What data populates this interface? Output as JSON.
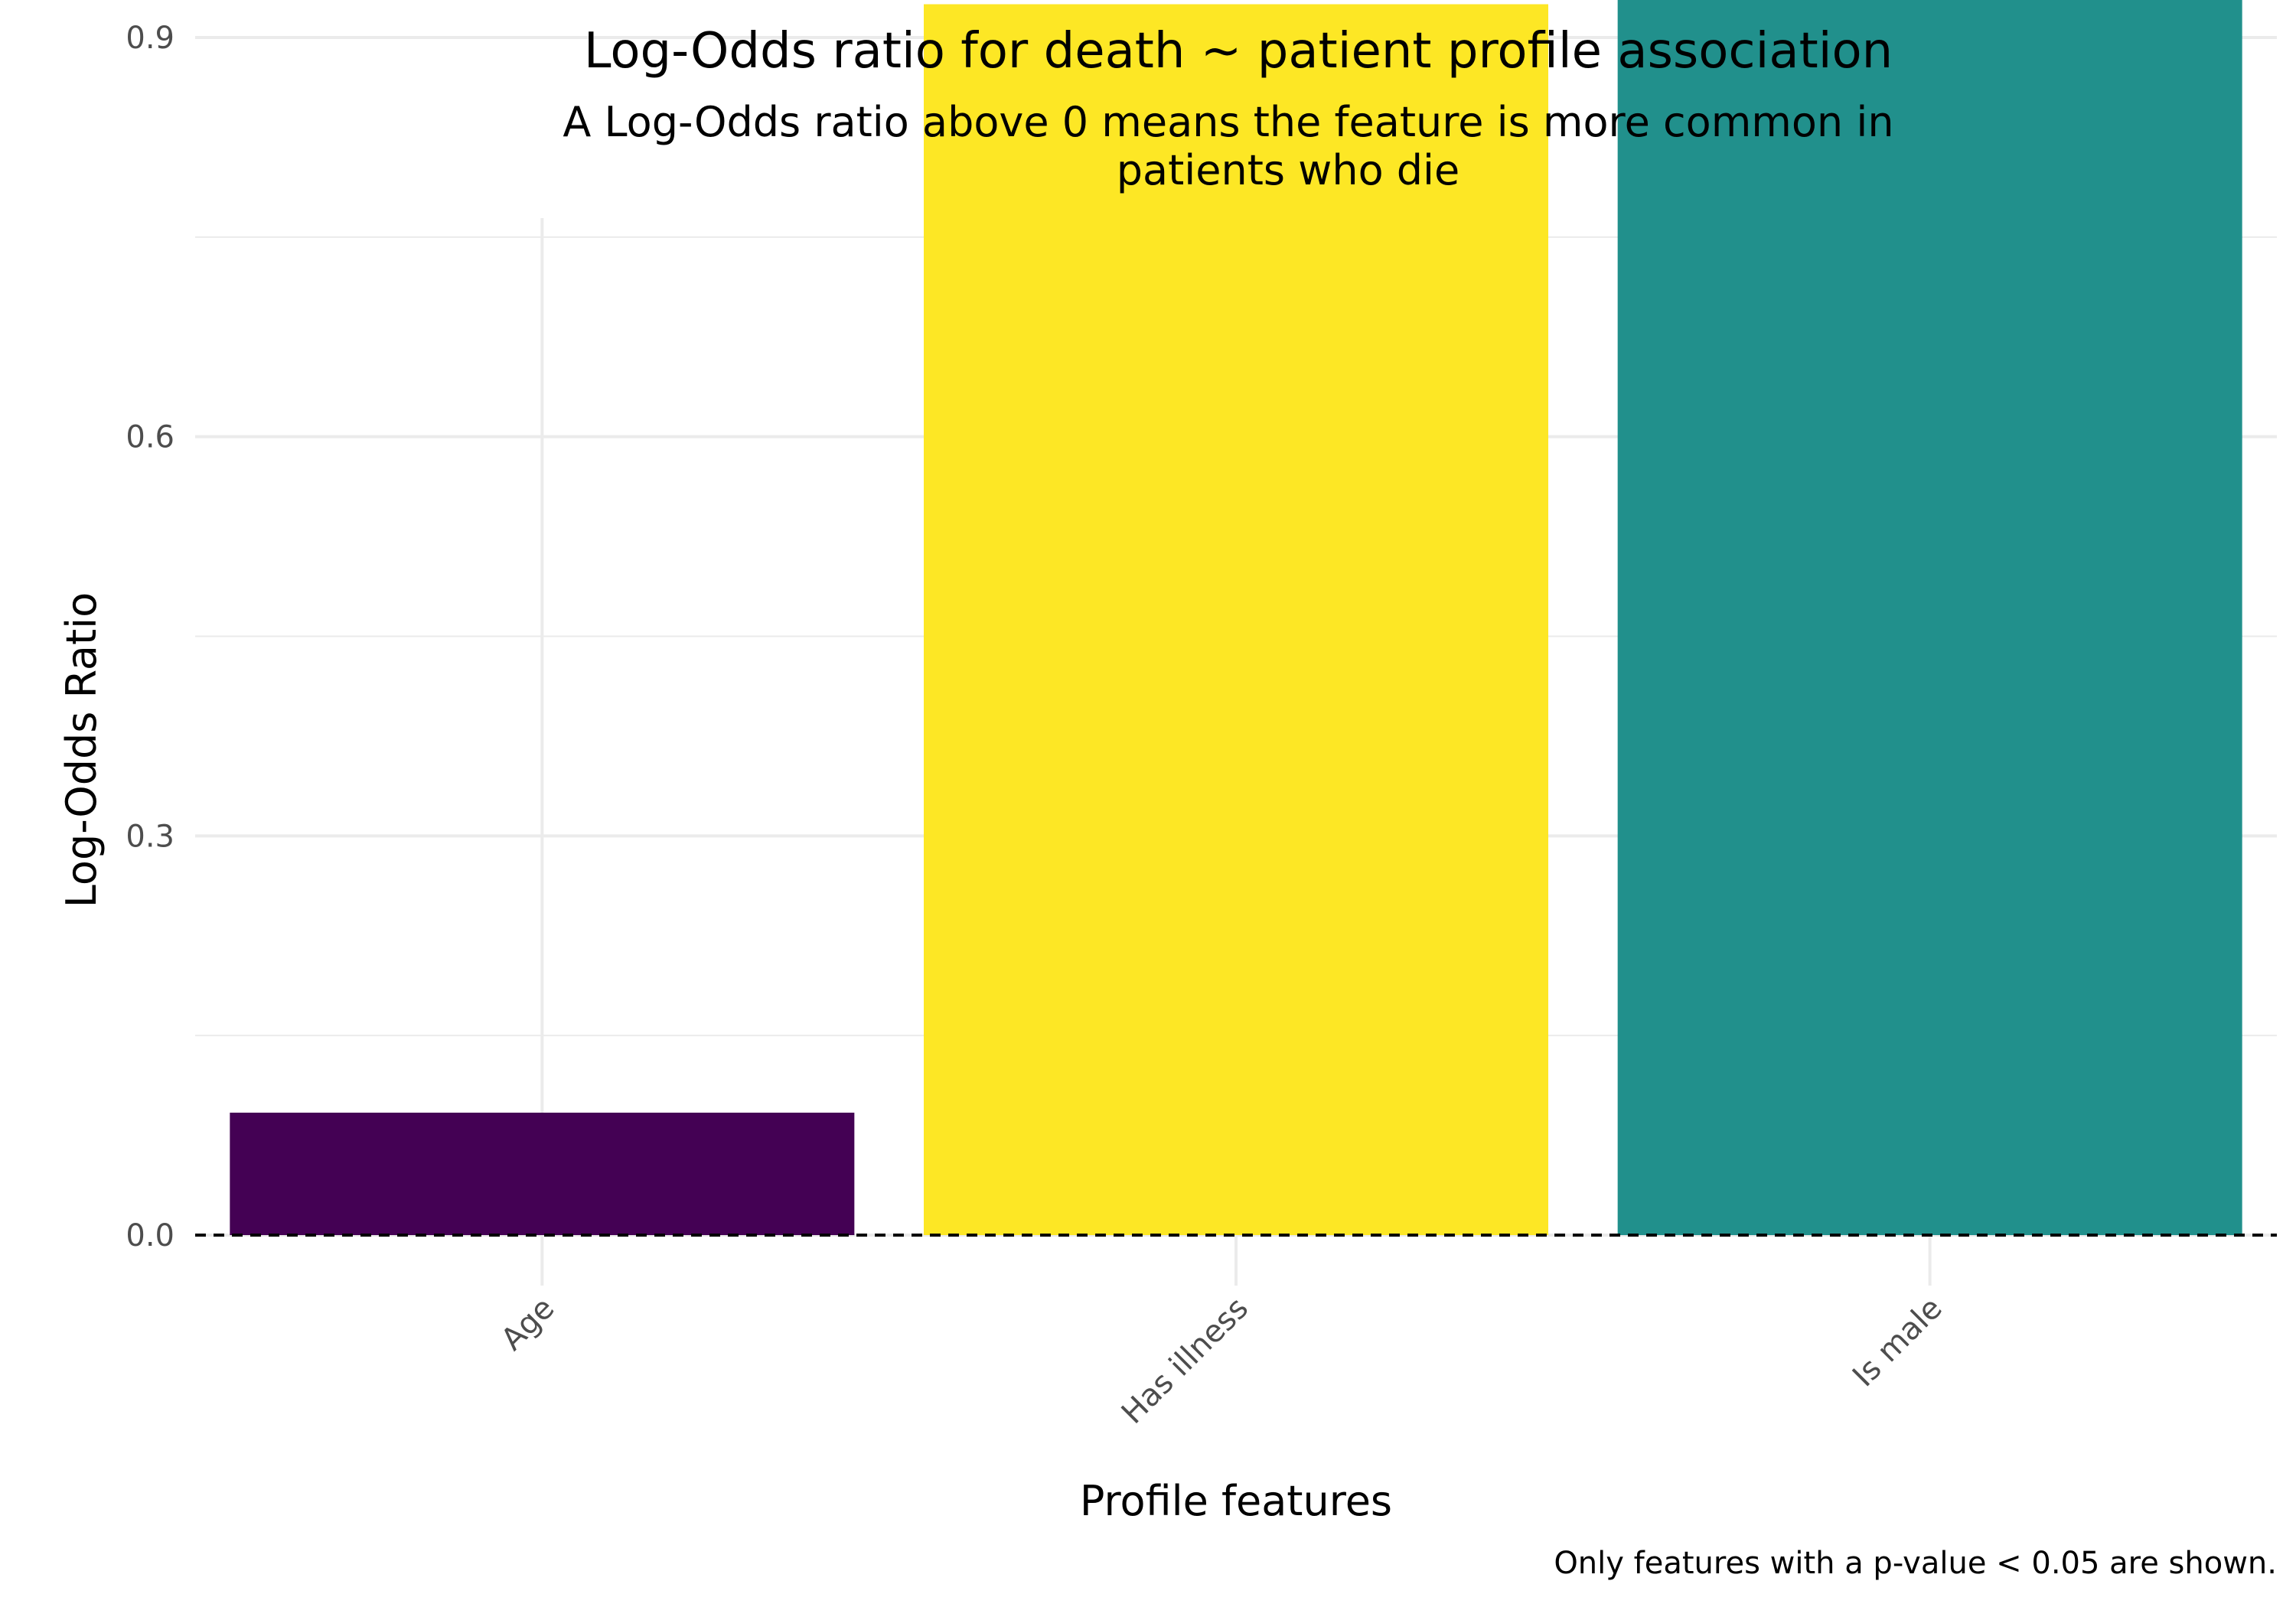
{
  "chart_data": {
    "type": "bar",
    "title": "Log-Odds ratio for death ~ patient profile association",
    "subtitle_lines": [
      "A Log-Odds ratio above 0 means the feature is more common in",
      "patients who die"
    ],
    "xlabel": "Profile features",
    "ylabel": "Log-Odds Ratio",
    "caption": "Only features with a p-value < 0.05 are shown.",
    "categories": [
      "Age",
      "Has illness",
      "Is male"
    ],
    "values": [
      0.092,
      0.925,
      1.093
    ],
    "colors": [
      "#440154",
      "#FDE725",
      "#21908C"
    ],
    "ylim": [
      -0.05,
      1.15
    ],
    "yticks": [
      0.0,
      0.3,
      0.6,
      0.9
    ],
    "ytick_labels": [
      "0.0",
      "0.3",
      "0.6",
      "0.9"
    ],
    "reference_line": 0,
    "grid": true,
    "legend": "none"
  }
}
